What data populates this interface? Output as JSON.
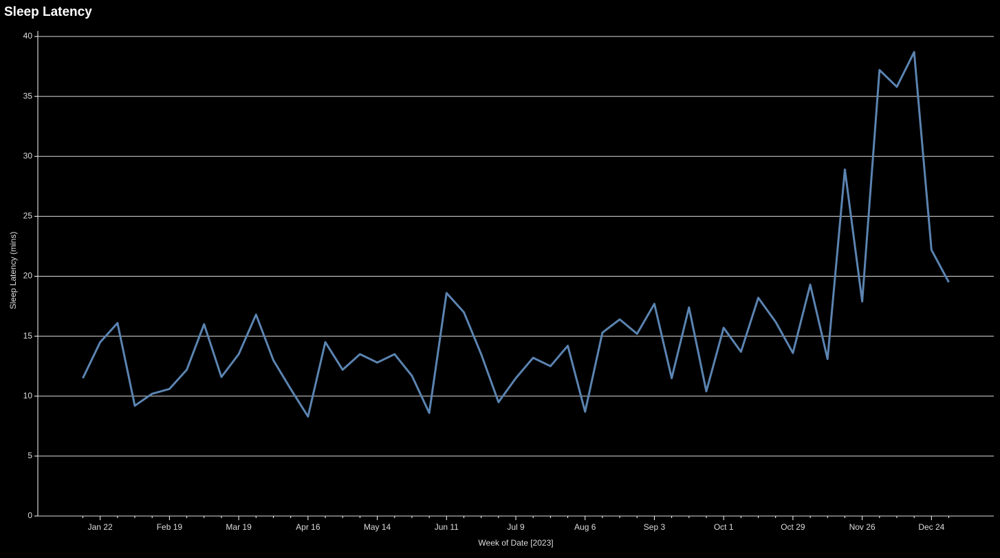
{
  "chart_data": {
    "type": "line",
    "title": "Sleep Latency",
    "x_label": "Week of Date [2023]",
    "y_label": "Sleep Latency (mins)",
    "categories": [
      null,
      "Jan 22",
      null,
      null,
      null,
      "Feb 19",
      null,
      null,
      null,
      "Mar 19",
      null,
      null,
      null,
      "Apr 16",
      null,
      null,
      null,
      "May 14",
      null,
      null,
      null,
      "Jun 11",
      null,
      null,
      null,
      "Jul 9",
      null,
      null,
      null,
      "Aug 6",
      null,
      null,
      null,
      "Sep 3",
      null,
      null,
      null,
      "Oct 1",
      null,
      null,
      null,
      "Oct 29",
      null,
      null,
      null,
      "Nov 26",
      null,
      null,
      null,
      "Dec 24",
      null
    ],
    "series": [
      {
        "name": "Sleep Latency",
        "color": "#5b84b1",
        "values": [
          11.5,
          14.5,
          16.1,
          9.2,
          10.2,
          10.6,
          12.2,
          16.0,
          11.6,
          13.5,
          16.8,
          13.0,
          10.6,
          8.3,
          14.5,
          12.2,
          13.5,
          12.8,
          13.5,
          11.7,
          8.6,
          18.6,
          17.0,
          13.5,
          9.5,
          11.5,
          13.2,
          12.5,
          14.2,
          8.7,
          15.3,
          16.4,
          15.2,
          17.7,
          11.5,
          17.4,
          10.4,
          15.7,
          13.7,
          18.2,
          16.2,
          13.6,
          19.3,
          13.1,
          28.9,
          17.9,
          37.2,
          35.8,
          38.7,
          22.2,
          19.5
        ]
      }
    ],
    "ylim": [
      0,
      40
    ],
    "yticks": [
      0,
      5,
      10,
      15,
      20,
      25,
      30,
      35,
      40
    ],
    "grid": true
  }
}
